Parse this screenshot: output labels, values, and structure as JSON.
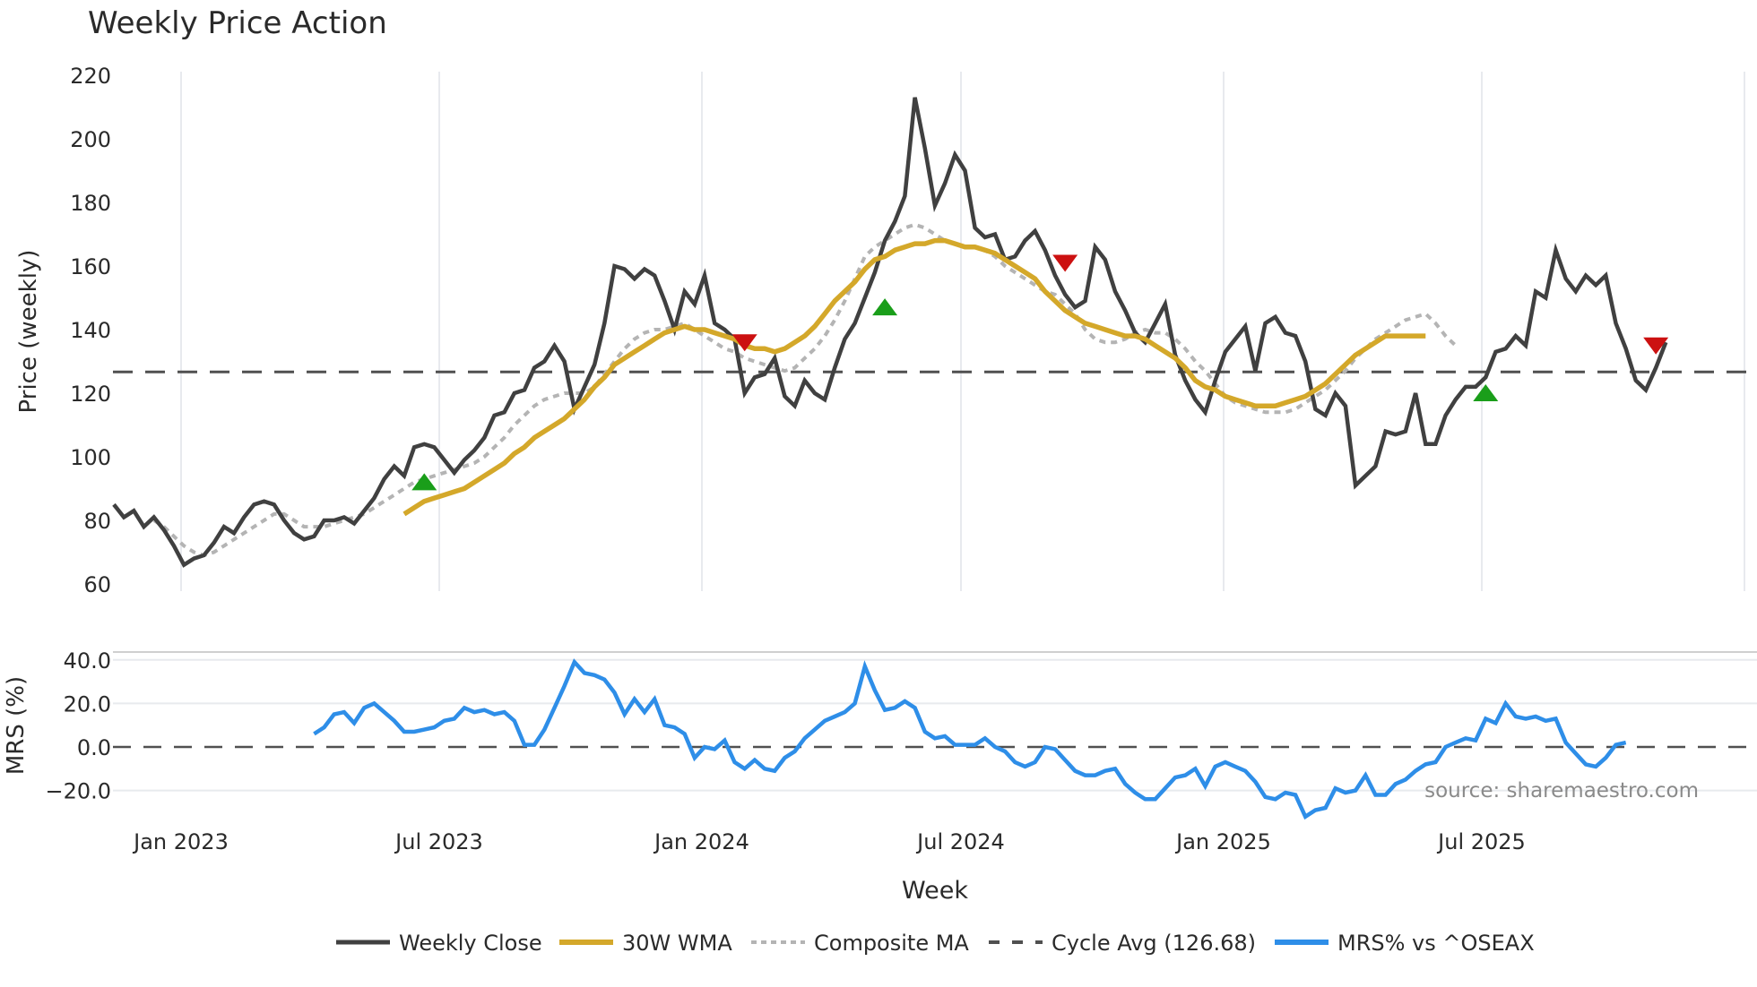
{
  "title": "Weekly Price Action",
  "source_note": "source: sharemaestro.com",
  "colors": {
    "close": "#404040",
    "wma": "#d4a82a",
    "composite": "#b4b4b4",
    "cycle_avg": "#505050",
    "mrs": "#2e8ee8",
    "buy_marker": "#1a9e1a",
    "sell_marker": "#cc1111",
    "grid": "#e8eaee"
  },
  "chart_data": [
    {
      "type": "line",
      "title": "Weekly Price Action",
      "xlabel": "Week",
      "ylabel": "Price (weekly)",
      "ylim": [
        60,
        220
      ],
      "yticks": [
        60,
        80,
        100,
        120,
        140,
        160,
        180,
        200,
        220
      ],
      "xticks": [
        "Jan 2023",
        "Jul 2023",
        "Jan 2024",
        "Jul 2024",
        "Jan 2025",
        "Jul 2025"
      ],
      "grid": true,
      "cycle_avg": 126.68,
      "start_week": "2022-11-07",
      "series": [
        {
          "name": "Weekly Close",
          "offset": 0,
          "values": [
            85,
            81,
            83,
            78,
            81,
            77,
            72,
            66,
            68,
            69,
            73,
            78,
            76,
            81,
            85,
            86,
            85,
            80,
            76,
            74,
            75,
            80,
            80,
            81,
            79,
            83,
            87,
            93,
            97,
            94,
            103,
            104,
            103,
            99,
            95,
            99,
            102,
            106,
            113,
            114,
            120,
            121,
            128,
            130,
            135,
            130,
            115,
            122,
            129,
            142,
            160,
            159,
            156,
            159,
            157,
            149,
            140,
            152,
            148,
            157,
            142,
            140,
            137,
            120,
            125,
            126,
            131,
            119,
            116,
            124,
            120,
            118,
            128,
            137,
            142,
            150,
            158,
            168,
            174,
            182,
            213,
            197,
            179,
            186,
            195,
            190,
            172,
            169,
            170,
            162,
            163,
            168,
            171,
            165,
            157,
            151,
            147,
            149,
            166,
            162,
            152,
            146,
            139,
            136,
            142,
            148,
            132,
            124,
            118,
            114,
            124,
            133,
            137,
            141,
            127,
            142,
            144,
            139,
            138,
            130,
            115,
            113,
            120,
            116,
            91,
            94,
            97,
            108,
            107,
            108,
            120,
            104,
            104,
            113,
            118,
            122,
            122,
            125,
            133,
            134,
            138,
            135,
            152,
            150,
            165,
            156,
            152,
            157,
            154,
            157,
            142,
            134,
            124,
            121,
            128,
            136
          ]
        },
        {
          "name": "30W WMA",
          "offset": 29,
          "values": [
            82,
            84,
            86,
            87,
            88,
            89,
            90,
            92,
            94,
            96,
            98,
            101,
            103,
            106,
            108,
            110,
            112,
            115,
            118,
            122,
            125,
            129,
            131,
            133,
            135,
            137,
            139,
            140,
            141,
            140,
            140,
            139,
            138,
            137,
            135,
            134,
            134,
            133,
            134,
            136,
            138,
            141,
            145,
            149,
            152,
            155,
            159,
            162,
            163,
            165,
            166,
            167,
            167,
            168,
            168,
            167,
            166,
            166,
            165,
            164,
            162,
            160,
            158,
            156,
            152,
            149,
            146,
            144,
            142,
            141,
            140,
            139,
            138,
            138,
            137,
            135,
            133,
            131,
            128,
            124,
            122,
            121,
            119,
            118,
            117,
            116,
            116,
            116,
            117,
            118,
            119,
            121,
            123,
            126,
            129,
            132,
            134,
            136,
            138,
            138,
            138,
            138,
            138
          ]
        },
        {
          "name": "Composite MA",
          "offset": 4,
          "values": [
            80,
            78,
            75,
            72,
            70,
            69,
            70,
            72,
            74,
            76,
            78,
            80,
            82,
            82,
            80,
            78,
            78,
            78,
            79,
            80,
            81,
            82,
            84,
            86,
            88,
            90,
            92,
            93,
            94,
            95,
            96,
            97,
            98,
            100,
            103,
            106,
            110,
            113,
            116,
            118,
            119,
            120,
            120,
            120,
            122,
            126,
            130,
            134,
            137,
            139,
            140,
            140,
            141,
            142,
            140,
            138,
            136,
            134,
            133,
            131,
            130,
            129,
            128,
            127,
            128,
            131,
            134,
            138,
            143,
            149,
            156,
            163,
            166,
            168,
            170,
            172,
            173,
            172,
            170,
            168,
            167,
            166,
            166,
            165,
            163,
            160,
            158,
            156,
            154,
            152,
            151,
            148,
            145,
            140,
            137,
            136,
            136,
            137,
            139,
            140,
            139,
            139,
            137,
            134,
            130,
            127,
            123,
            119,
            117,
            116,
            115,
            114,
            114,
            114,
            115,
            117,
            119,
            121,
            124,
            127,
            131,
            134,
            137,
            139,
            141,
            143,
            144,
            145,
            142,
            138,
            135
          ]
        },
        {
          "name": "MRS% vs ^OSEAX",
          "offset": 20,
          "values": [
            6,
            9,
            15,
            16,
            11,
            18,
            20,
            16,
            12,
            7,
            7,
            8,
            9,
            12,
            13,
            18,
            16,
            17,
            15,
            16,
            12,
            1,
            1,
            8,
            18,
            28,
            39,
            34,
            33,
            31,
            25,
            15,
            22,
            16,
            22,
            10,
            9,
            6,
            -5,
            0,
            -1,
            3,
            -7,
            -10,
            -6,
            -10,
            -11,
            -5,
            -2,
            4,
            8,
            12,
            14,
            16,
            20,
            37,
            26,
            17,
            18,
            21,
            18,
            7,
            4,
            5,
            1,
            1,
            1,
            4,
            0,
            -2,
            -7,
            -9,
            -7,
            0,
            -1,
            -6,
            -11,
            -13,
            -13,
            -11,
            -10,
            -17,
            -21,
            -24,
            -24,
            -19,
            -14,
            -13,
            -10,
            -18,
            -9,
            -7,
            -9,
            -11,
            -16,
            -23,
            -24,
            -21,
            -22,
            -32,
            -29,
            -28,
            -19,
            -21,
            -20,
            -13,
            -22,
            -22,
            -17,
            -15,
            -11,
            -8,
            -7,
            0,
            2,
            4,
            3,
            13,
            11,
            20,
            14,
            13,
            14,
            12,
            13,
            2,
            -3,
            -8,
            -9,
            -5,
            1,
            2
          ]
        }
      ],
      "markers": [
        {
          "type": "buy",
          "index": 31,
          "price": 92
        },
        {
          "type": "sell",
          "index": 63,
          "price": 136
        },
        {
          "type": "buy",
          "index": 77,
          "price": 147
        },
        {
          "type": "sell",
          "index": 95,
          "price": 161
        },
        {
          "type": "buy",
          "index": 137,
          "price": 120
        },
        {
          "type": "sell",
          "index": 154,
          "price": 135
        }
      ]
    },
    {
      "type": "line",
      "ylabel": "MRS (%)",
      "ylim": [
        -25,
        42
      ],
      "yticks": [
        "-20.0",
        "0.0",
        "20.0",
        "40.0"
      ],
      "reference_line": 0
    }
  ],
  "legend": [
    {
      "label": "Weekly Close",
      "style": "solid"
    },
    {
      "label": "30W WMA",
      "style": "solid"
    },
    {
      "label": "Composite MA",
      "style": "dotted"
    },
    {
      "label": "Cycle Avg (126.68)",
      "style": "dashed"
    },
    {
      "label": "MRS% vs ^OSEAX",
      "style": "solid"
    }
  ]
}
